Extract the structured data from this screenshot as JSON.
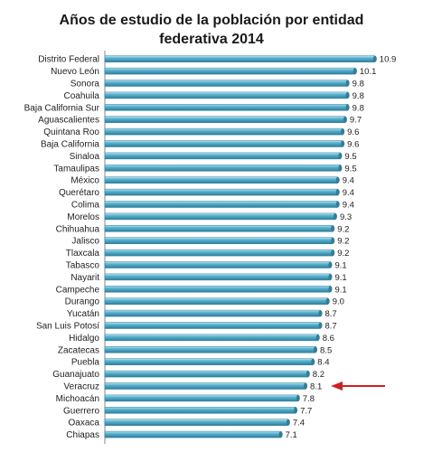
{
  "chart_data": {
    "type": "bar",
    "orientation": "horizontal",
    "title_lines": [
      "Años de estudio de la población por entidad",
      "federativa 2014"
    ],
    "categories": [
      "Distrito Federal",
      "Nuevo León",
      "Sonora",
      "Coahuila",
      "Baja California Sur",
      "Aguascalientes",
      "Quintana Roo",
      "Baja California",
      "Sinaloa",
      "Tamaulipas",
      "México",
      "Querétaro",
      "Colima",
      "Morelos",
      "Chihuahua",
      "Jalisco",
      "Tlaxcala",
      "Tabasco",
      "Nayarit",
      "Campeche",
      "Durango",
      "Yucatán",
      "San Luis Potosí",
      "Hidalgo",
      "Zacatecas",
      "Puebla",
      "Guanajuato",
      "Veracruz",
      "Michoacán",
      "Guerrero",
      "Oaxaca",
      "Chiapas"
    ],
    "values": [
      10.9,
      10.1,
      9.8,
      9.8,
      9.8,
      9.7,
      9.6,
      9.6,
      9.5,
      9.5,
      9.4,
      9.4,
      9.4,
      9.3,
      9.2,
      9.2,
      9.2,
      9.1,
      9.1,
      9.1,
      9.0,
      8.7,
      8.7,
      8.6,
      8.5,
      8.4,
      8.2,
      8.1,
      7.8,
      7.7,
      7.4,
      7.1
    ],
    "value_labels": [
      "10.9",
      "10.1",
      "9.8",
      "9.8",
      "9.8",
      "9.7",
      "9.6",
      "9.6",
      "9.5",
      "9.5",
      "9.4",
      "9.4",
      "9.4",
      "9.3",
      "9.2",
      "9.2",
      "9.2",
      "9.1",
      "9.1",
      "9.1",
      "9.0",
      "8.7",
      "8.7",
      "8.6",
      "8.5",
      "8.4",
      "8.2",
      "8.1",
      "7.8",
      "7.7",
      "7.4",
      "7.1"
    ],
    "xlim": [
      0,
      11.6
    ],
    "highlight": "Veracruz",
    "colors": {
      "bar": "#4aa3c0",
      "bar_light": "#9fd6e8",
      "bar_dark": "#2d7f9c",
      "arrow": "#cc2222",
      "axis": "#888888"
    }
  }
}
